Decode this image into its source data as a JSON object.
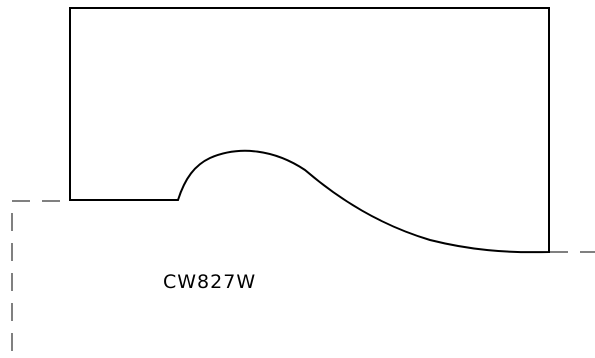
{
  "drawing": {
    "part_code": "CW827W"
  }
}
